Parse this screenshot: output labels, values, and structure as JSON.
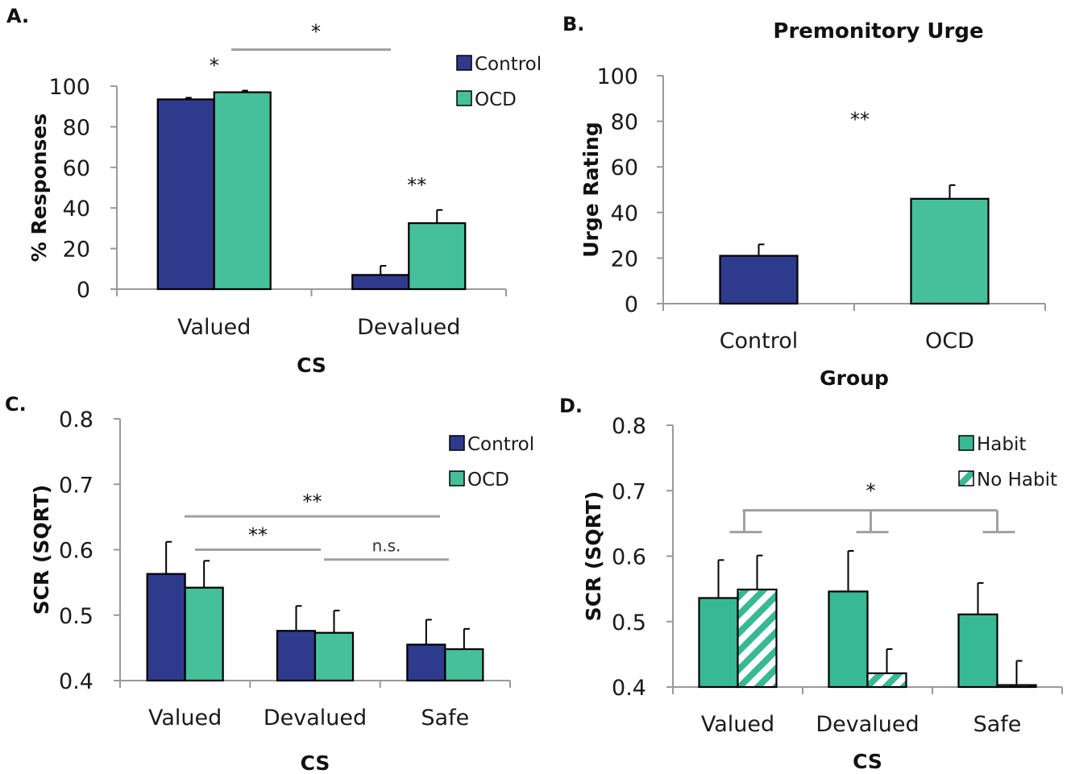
{
  "colors": {
    "control": "#2e3a8c",
    "ocd": "#45c09a",
    "habit": "#38b995",
    "axis": "#999999",
    "bracket": "#a0a0a0"
  },
  "chart_data": [
    {
      "panel": "A.",
      "type": "bar",
      "title": "",
      "xlabel": "CS",
      "ylabel": "% Responses",
      "categories": [
        "Valued",
        "Devalued"
      ],
      "ylim": [
        0,
        100
      ],
      "yticks": [
        "0",
        "20",
        "40",
        "60",
        "80",
        "100"
      ],
      "series": [
        {
          "name": "Control",
          "values": [
            93.5,
            7
          ],
          "errors": [
            0.8,
            4.5
          ]
        },
        {
          "name": "OCD",
          "values": [
            97,
            32.5
          ],
          "errors": [
            0.8,
            6.5
          ]
        }
      ],
      "legend": "top-right",
      "annotations": [
        {
          "label": "*",
          "type": "bracket-line",
          "from": 0,
          "to": 1,
          "y": 118
        },
        {
          "label": "*",
          "type": "text",
          "cat": 0,
          "y": 107
        },
        {
          "label": "**",
          "type": "text",
          "cat": 1,
          "y": 48
        }
      ]
    },
    {
      "panel": "B.",
      "type": "bar",
      "title": "Premonitory Urge",
      "xlabel": "Group",
      "ylabel": "Urge Rating",
      "categories": [
        "Control",
        "OCD"
      ],
      "ylim": [
        0,
        100
      ],
      "yticks": [
        "0",
        "20",
        "40",
        "60",
        "80",
        "100"
      ],
      "values": [
        21,
        46
      ],
      "errors": [
        5,
        6
      ],
      "bar_colors": [
        "control",
        "ocd"
      ],
      "annotations": [
        {
          "label": "**",
          "type": "text",
          "y": 78
        }
      ]
    },
    {
      "panel": "C.",
      "type": "bar",
      "title": "",
      "xlabel": "CS",
      "ylabel": "SCR (SQRT)",
      "categories": [
        "Valued",
        "Devalued",
        "Safe"
      ],
      "ylim": [
        0.4,
        0.8
      ],
      "yticks": [
        "0.4",
        "0.5",
        "0.6",
        "0.7",
        "0.8"
      ],
      "series": [
        {
          "name": "Control",
          "values": [
            0.563,
            0.476,
            0.455
          ],
          "errors": [
            0.049,
            0.038,
            0.038
          ]
        },
        {
          "name": "OCD",
          "values": [
            0.542,
            0.473,
            0.448
          ],
          "errors": [
            0.041,
            0.034,
            0.031
          ]
        }
      ],
      "legend": "top-right",
      "annotations": [
        {
          "label": "**",
          "type": "line",
          "from": 0,
          "to": 2,
          "y": 0.651
        },
        {
          "label": "**",
          "type": "line",
          "from": 0,
          "to": 1,
          "y": 0.6
        },
        {
          "label": "n.s.",
          "type": "line",
          "from": 1,
          "to": 2,
          "y": 0.585
        }
      ]
    },
    {
      "panel": "D.",
      "type": "bar",
      "title": "",
      "xlabel": "CS",
      "ylabel": "SCR (SQRT)",
      "categories": [
        "Valued",
        "Devalued",
        "Safe"
      ],
      "ylim": [
        0.4,
        0.8
      ],
      "yticks": [
        "0.4",
        "0.5",
        "0.6",
        "0.7",
        "0.8"
      ],
      "series": [
        {
          "name": "Habit",
          "values": [
            0.536,
            0.546,
            0.511
          ],
          "errors": [
            0.058,
            0.062,
            0.048
          ],
          "pattern": "solid"
        },
        {
          "name": "No Habit",
          "values": [
            0.549,
            0.421,
            0.403
          ],
          "errors": [
            0.052,
            0.037,
            0.037
          ],
          "pattern": "hatched"
        }
      ],
      "legend": "top-right",
      "annotations": [
        {
          "label": "*",
          "type": "bracket-tree",
          "y": 0.67
        }
      ]
    }
  ]
}
